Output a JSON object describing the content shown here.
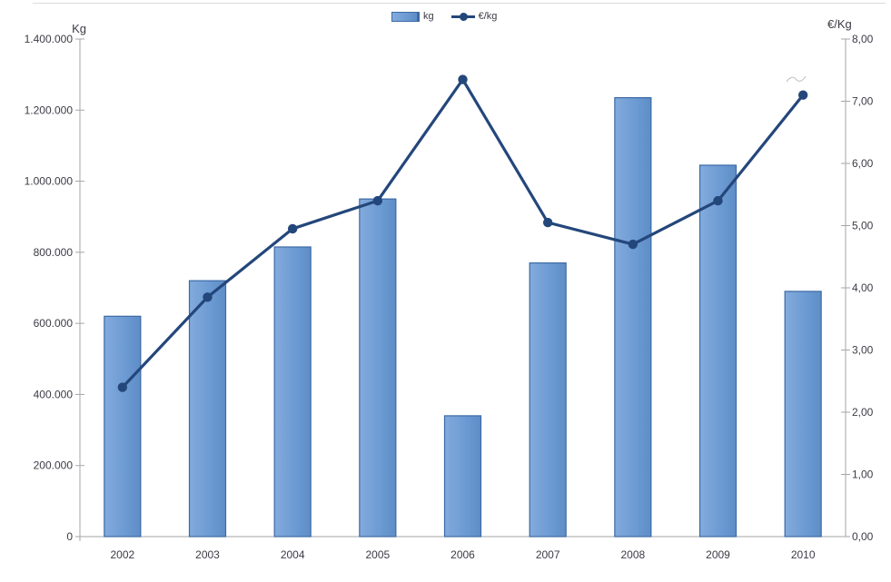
{
  "chart_data": {
    "type": "combo",
    "title": "",
    "categories": [
      "2002",
      "2003",
      "2004",
      "2005",
      "2006",
      "2007",
      "2008",
      "2009",
      "2010"
    ],
    "series": [
      {
        "name": "kg",
        "type": "bar",
        "axis": "left",
        "values": [
          620000,
          720000,
          815000,
          950000,
          340000,
          770000,
          1235000,
          1045000,
          690000
        ]
      },
      {
        "name": "€/kg",
        "type": "line",
        "axis": "right",
        "values": [
          2.4,
          3.85,
          4.95,
          5.4,
          7.35,
          5.05,
          4.7,
          5.4,
          7.1
        ]
      }
    ],
    "left_axis": {
      "title": "Kg",
      "min": 0,
      "max": 1400000,
      "tick_labels": [
        "0",
        "200.000",
        "400.000",
        "600.000",
        "800.000",
        "1.000.000",
        "1.200.000",
        "1.400.000"
      ]
    },
    "right_axis": {
      "title": "€/Kg",
      "min": 0,
      "max": 8,
      "tick_labels": [
        "0,00",
        "1,00",
        "2,00",
        "3,00",
        "4,00",
        "5,00",
        "6,00",
        "7,00",
        "8,00"
      ]
    },
    "legend": {
      "position": "top-center",
      "items": [
        {
          "label": "kg",
          "swatch": "bar"
        },
        {
          "label": "€/kg",
          "swatch": "line-marker"
        }
      ]
    },
    "grid": false,
    "colors": {
      "bar_fill": "#6d9bd3",
      "bar_fill_light": "#83abdd",
      "bar_fill_dark": "#5e8dc7",
      "bar_border": "#3c6aa5",
      "line": "#24477b",
      "axis": "#a6a6a6",
      "text": "#3b3b46"
    }
  }
}
